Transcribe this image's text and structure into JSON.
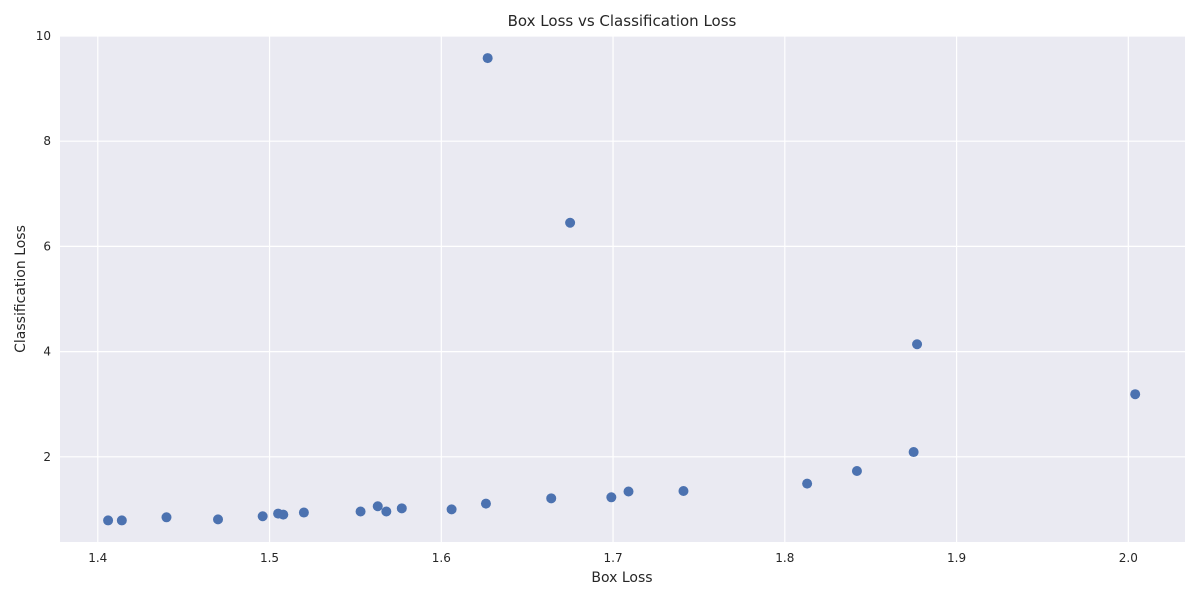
{
  "chart_data": {
    "type": "scatter",
    "title": "Box Loss vs Classification Loss",
    "xlabel": "Box Loss",
    "ylabel": "Classification Loss",
    "xlim": [
      1.378,
      2.033
    ],
    "ylim": [
      0.38,
      10.0
    ],
    "x_ticks": [
      1.4,
      1.5,
      1.6,
      1.7,
      1.8,
      1.9,
      2.0
    ],
    "x_tick_labels": [
      "1.4",
      "1.5",
      "1.6",
      "1.7",
      "1.8",
      "1.9",
      "2.0"
    ],
    "y_ticks": [
      2,
      4,
      6,
      8,
      10
    ],
    "y_tick_labels": [
      "2",
      "4",
      "6",
      "8",
      "10"
    ],
    "grid": true,
    "colors": {
      "background": "#EAEAF2",
      "grid": "#FFFFFF",
      "marker": "#4C72B0"
    },
    "points": [
      {
        "x": 1.406,
        "y": 0.79
      },
      {
        "x": 1.414,
        "y": 0.79
      },
      {
        "x": 1.44,
        "y": 0.85
      },
      {
        "x": 1.47,
        "y": 0.81
      },
      {
        "x": 1.496,
        "y": 0.87
      },
      {
        "x": 1.505,
        "y": 0.92
      },
      {
        "x": 1.508,
        "y": 0.9
      },
      {
        "x": 1.52,
        "y": 0.94
      },
      {
        "x": 1.553,
        "y": 0.96
      },
      {
        "x": 1.563,
        "y": 1.06
      },
      {
        "x": 1.568,
        "y": 0.96
      },
      {
        "x": 1.577,
        "y": 1.02
      },
      {
        "x": 1.606,
        "y": 1.0
      },
      {
        "x": 1.626,
        "y": 1.11
      },
      {
        "x": 1.627,
        "y": 9.58
      },
      {
        "x": 1.664,
        "y": 1.21
      },
      {
        "x": 1.675,
        "y": 6.45
      },
      {
        "x": 1.699,
        "y": 1.23
      },
      {
        "x": 1.709,
        "y": 1.34
      },
      {
        "x": 1.741,
        "y": 1.35
      },
      {
        "x": 1.813,
        "y": 1.49
      },
      {
        "x": 1.842,
        "y": 1.73
      },
      {
        "x": 1.875,
        "y": 2.09
      },
      {
        "x": 1.877,
        "y": 4.14
      },
      {
        "x": 2.004,
        "y": 3.19
      }
    ]
  }
}
